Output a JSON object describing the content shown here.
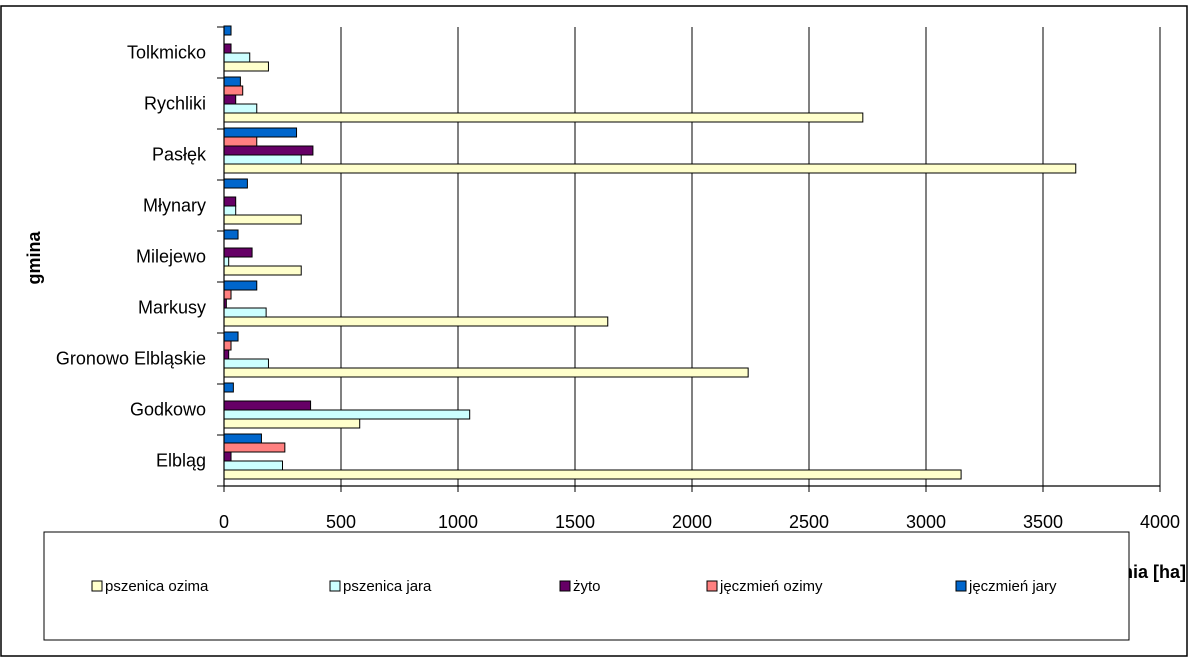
{
  "chart_data": {
    "type": "bar",
    "orientation": "horizontal",
    "xlabel": "powierzchnia [ha]",
    "ylabel": "gmina",
    "xlim": [
      0,
      4000
    ],
    "xticks": [
      0,
      500,
      1000,
      1500,
      2000,
      2500,
      3000,
      3500,
      4000
    ],
    "grid": "vertical",
    "legend_position": "bottom",
    "categories": [
      "Elbląg",
      "Godkowo",
      "Gronowo Elbląskie",
      "Markusy",
      "Milejewo",
      "Młynary",
      "Pasłęk",
      "Rychliki",
      "Tolkmicko"
    ],
    "series": [
      {
        "name": "pszenica ozima",
        "color": "#ffffcc",
        "values": [
          3150,
          580,
          2240,
          1640,
          330,
          330,
          3640,
          2730,
          190
        ]
      },
      {
        "name": "pszenica jara",
        "color": "#ccffff",
        "values": [
          250,
          1050,
          190,
          180,
          20,
          50,
          330,
          140,
          110
        ]
      },
      {
        "name": "żyto",
        "color": "#660066",
        "values": [
          30,
          370,
          20,
          10,
          120,
          50,
          380,
          50,
          30
        ]
      },
      {
        "name": "jęczmień ozimy",
        "color": "#ff8080",
        "values": [
          260,
          0,
          30,
          30,
          0,
          0,
          140,
          80,
          0
        ]
      },
      {
        "name": "jęczmień jary",
        "color": "#0066cc",
        "values": [
          160,
          40,
          60,
          140,
          60,
          100,
          310,
          70,
          30
        ]
      }
    ]
  }
}
